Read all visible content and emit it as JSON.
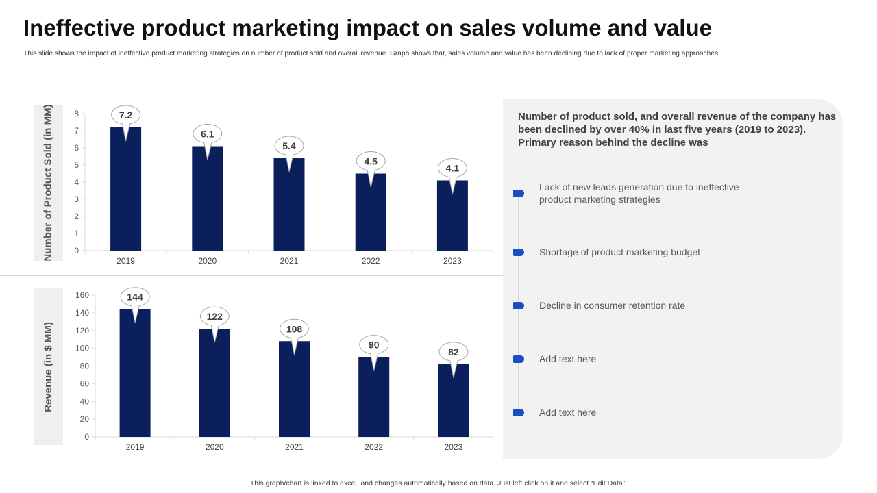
{
  "header": {
    "title": "Ineffective product marketing impact on sales volume and value",
    "subtitle": "This slide shows the impact of ineffective product marketing strategies on number of product sold and overall revenue. Graph shows that, sales volume and value has been declining due to lack of proper marketing approaches"
  },
  "chart_data": [
    {
      "type": "bar",
      "title": "",
      "categories": [
        "2019",
        "2020",
        "2021",
        "2022",
        "2023"
      ],
      "values": [
        7.2,
        6.1,
        5.4,
        4.5,
        4.1
      ],
      "data_labels": [
        "7.2",
        "6.1",
        "5.4",
        "4.5",
        "4.1"
      ],
      "xlabel": "",
      "ylabel": "Number of Product Sold (in MM)",
      "ylim": [
        0,
        8
      ],
      "yticks": [
        0,
        1,
        2,
        3,
        4,
        5,
        6,
        7,
        8
      ],
      "bar_color": "#0a1f5c"
    },
    {
      "type": "bar",
      "title": "",
      "categories": [
        "2019",
        "2020",
        "2021",
        "2022",
        "2023"
      ],
      "values": [
        144,
        122,
        108,
        90,
        82
      ],
      "data_labels": [
        "144",
        "122",
        "108",
        "90",
        "82"
      ],
      "xlabel": "",
      "ylabel": "Revenue (in $ MM)",
      "ylim": [
        0,
        160
      ],
      "yticks": [
        0,
        20,
        40,
        60,
        80,
        100,
        120,
        140,
        160
      ],
      "bar_color": "#0a1f5c"
    }
  ],
  "panel": {
    "heading": "Number of product sold,  and overall revenue of the company has been declined by over 40% in last five years (2019 to 2023). Primary reason behind the decline was",
    "items": [
      "Lack of new leads generation due to ineffective product marketing strategies",
      "Shortage of product marketing budget",
      "Decline in consumer retention rate",
      "Add text here",
      "Add text here"
    ],
    "accent_color": "#1a4fc4"
  },
  "footer": {
    "note": "This graph/chart is linked to excel,  and changes automatically based on data. Just left click on it and select “Edit Data”."
  }
}
